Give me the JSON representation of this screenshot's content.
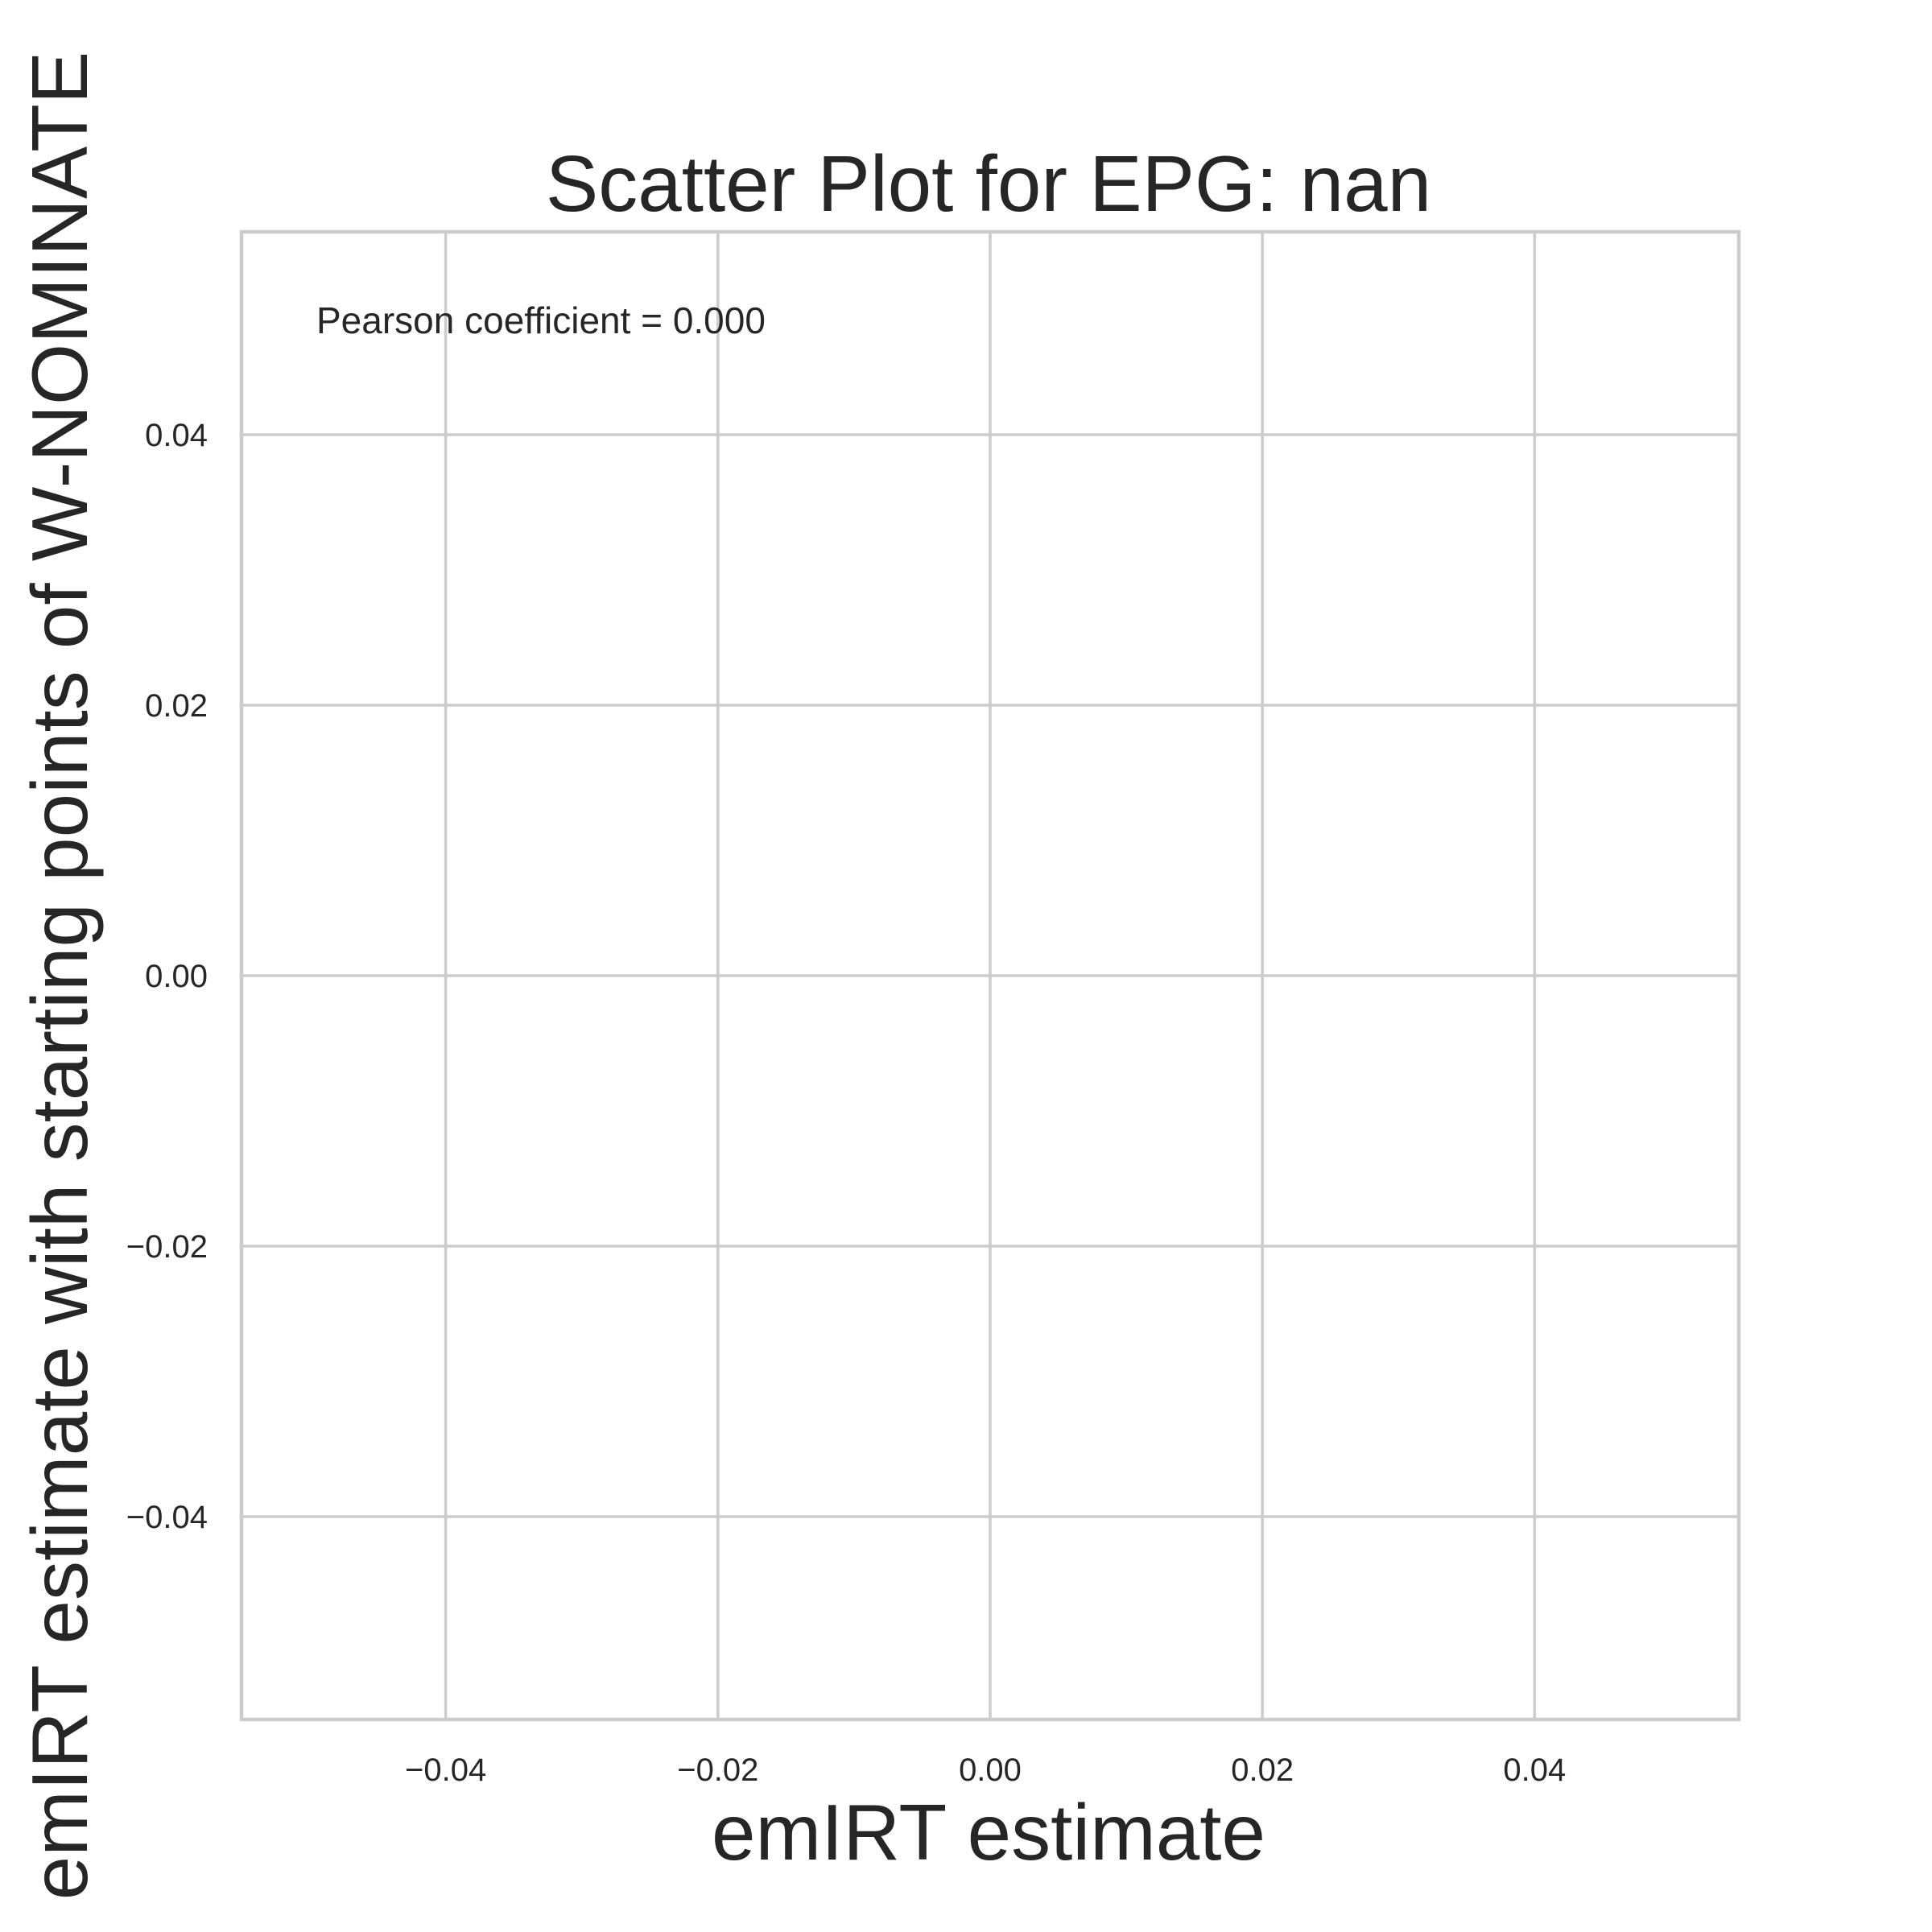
{
  "chart_data": {
    "type": "scatter",
    "title": "Scatter Plot for EPG: nan",
    "xlabel": "emIRT estimate",
    "ylabel": "emIRT estimate with starting points of W-NOMINATE",
    "xlim": [
      -0.055,
      0.055
    ],
    "ylim": [
      -0.055,
      0.055
    ],
    "x_ticks": [
      -0.04,
      -0.02,
      0.0,
      0.02,
      0.04
    ],
    "y_ticks": [
      -0.04,
      -0.02,
      0.0,
      0.02,
      0.04
    ],
    "x_tick_labels": [
      "−0.04",
      "−0.02",
      "0.00",
      "0.02",
      "0.04"
    ],
    "y_tick_labels": [
      "−0.04",
      "−0.02",
      "0.00",
      "0.02",
      "0.04"
    ],
    "annotation": "Pearson coefficient = 0.000",
    "grid": true,
    "points": []
  }
}
